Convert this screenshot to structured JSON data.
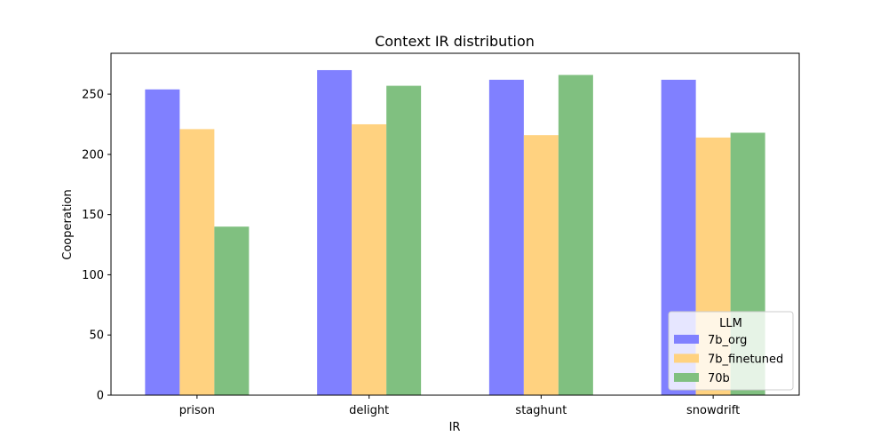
{
  "chart_data": {
    "type": "bar",
    "title": "Context IR distribution",
    "xlabel": "IR",
    "ylabel": "Cooperation",
    "categories": [
      "prison",
      "delight",
      "staghunt",
      "snowdrift"
    ],
    "series": [
      {
        "name": "7b_org",
        "color": "#8080ff",
        "values": [
          254,
          270,
          262,
          262
        ]
      },
      {
        "name": "7b_finetuned",
        "color": "#ffd280",
        "values": [
          221,
          225,
          216,
          214
        ]
      },
      {
        "name": "70b",
        "color": "#80c080",
        "values": [
          140,
          257,
          266,
          218
        ]
      }
    ],
    "ylim": [
      0,
      284
    ],
    "yticks": [
      0,
      50,
      100,
      150,
      200,
      250
    ],
    "grid": false,
    "legend": {
      "title": "LLM",
      "placement": "lower-right"
    }
  }
}
